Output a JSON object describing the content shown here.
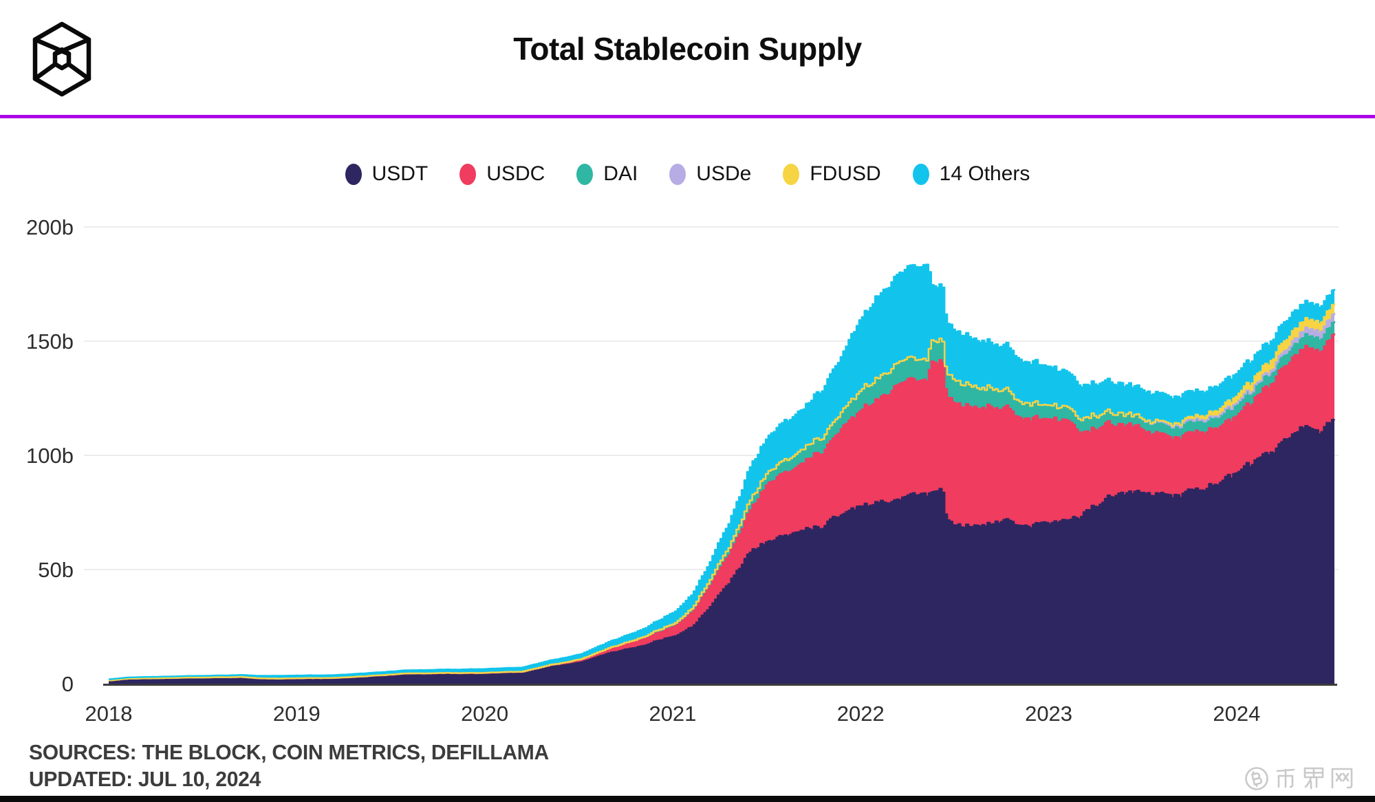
{
  "header": {
    "title": "Total Stablecoin Supply"
  },
  "footer": {
    "sources_line": "SOURCES: THE BLOCK, COIN METRICS, DEFILLAMA",
    "updated_line": "UPDATED: JUL 10, 2024"
  },
  "watermark": {
    "text": "币界网",
    "icon": "bitcoin-circle-icon"
  },
  "colors": {
    "background": "#ffffff",
    "rule_purple": "#ab07e6",
    "grid": "#ececec",
    "baseline": "#3c3c3c",
    "axis_text": "#2d2d2d",
    "title_text": "#0e0e0e",
    "footer_text": "#3c3c3c",
    "bottom_bar": "#0a0a0a",
    "watermark_gray": "#c9c9c9",
    "logo_black": "#0a0a0a"
  },
  "chart_data": {
    "type": "area",
    "stacked": true,
    "title": "Total Stablecoin Supply",
    "unit": "billions of USD",
    "grid": "horizontal",
    "legend_position": "top",
    "xlabel": "",
    "ylabel": "",
    "ylim": [
      0,
      200
    ],
    "x_range": [
      2018.0,
      2024.52
    ],
    "y_ticks": [
      {
        "value": 0,
        "label": "0"
      },
      {
        "value": 50,
        "label": "50b"
      },
      {
        "value": 100,
        "label": "100b"
      },
      {
        "value": 150,
        "label": "150b"
      },
      {
        "value": 200,
        "label": "200b"
      }
    ],
    "x_ticks": [
      {
        "value": 2018,
        "label": "2018"
      },
      {
        "value": 2019,
        "label": "2019"
      },
      {
        "value": 2020,
        "label": "2020"
      },
      {
        "value": 2021,
        "label": "2021"
      },
      {
        "value": 2022,
        "label": "2022"
      },
      {
        "value": 2023,
        "label": "2023"
      },
      {
        "value": 2024,
        "label": "2024"
      }
    ],
    "x": [
      2018.0,
      2018.1,
      2018.2,
      2018.3,
      2018.4,
      2018.5,
      2018.6,
      2018.7,
      2018.8,
      2018.9,
      2019.0,
      2019.2,
      2019.4,
      2019.6,
      2019.8,
      2020.0,
      2020.2,
      2020.35,
      2020.5,
      2020.65,
      2020.8,
      2020.9,
      2021.0,
      2021.1,
      2021.2,
      2021.3,
      2021.4,
      2021.5,
      2021.6,
      2021.7,
      2021.8,
      2021.9,
      2022.0,
      2022.1,
      2022.2,
      2022.3,
      2022.345,
      2022.355,
      2022.365,
      2022.43,
      2022.45,
      2022.5,
      2022.6,
      2022.7,
      2022.8,
      2022.86,
      2022.95,
      2023.0,
      2023.1,
      2023.17,
      2023.21,
      2023.3,
      2023.4,
      2023.5,
      2023.6,
      2023.7,
      2023.8,
      2023.9,
      2024.0,
      2024.1,
      2024.2,
      2024.3,
      2024.38,
      2024.45,
      2024.52
    ],
    "series": [
      {
        "name": "USDT",
        "color": "#2e2660",
        "values": [
          1.4,
          2.2,
          2.3,
          2.4,
          2.6,
          2.7,
          2.8,
          2.8,
          2.1,
          1.9,
          2.0,
          2.1,
          3.0,
          4.0,
          4.1,
          4.1,
          4.6,
          7.5,
          9.2,
          13.5,
          15.8,
          18.5,
          21.0,
          25.0,
          35.0,
          45.0,
          57.0,
          62.7,
          64.5,
          67.5,
          70.0,
          75.5,
          78.4,
          79.8,
          81.5,
          83.0,
          83.5,
          83.5,
          85.0,
          84.0,
          72.5,
          70.0,
          69.5,
          70.5,
          71.0,
          69.0,
          69.5,
          70.0,
          71.5,
          74.0,
          76.0,
          80.5,
          82.5,
          83.3,
          83.8,
          83.2,
          84.8,
          89.0,
          91.7,
          96.5,
          102.5,
          108.0,
          111.5,
          112.5,
          114.0
        ]
      },
      {
        "name": "USDC",
        "color": "#ef3c5f",
        "values": [
          0,
          0,
          0,
          0,
          0,
          0,
          0,
          0.05,
          0.15,
          0.25,
          0.3,
          0.35,
          0.4,
          0.45,
          0.5,
          0.52,
          0.65,
          0.75,
          1.1,
          1.7,
          2.6,
          3.3,
          4.2,
          6.5,
          9.5,
          12.5,
          18.0,
          25.0,
          27.5,
          30.0,
          33.0,
          37.5,
          42.5,
          46.5,
          50.5,
          50.0,
          49.5,
          49.5,
          56.0,
          56.5,
          54.0,
          53.5,
          52.5,
          51.0,
          49.0,
          47.0,
          45.5,
          45.0,
          43.5,
          37.0,
          34.5,
          32.5,
          29.5,
          27.8,
          26.0,
          25.3,
          24.8,
          24.3,
          25.2,
          27.5,
          31.0,
          33.5,
          34.5,
          35.5,
          37.5
        ]
      },
      {
        "name": "DAI",
        "color": "#2fb7a4",
        "values": [
          0.02,
          0.03,
          0.04,
          0.05,
          0.05,
          0.06,
          0.07,
          0.08,
          0.08,
          0.09,
          0.09,
          0.09,
          0.1,
          0.1,
          0.1,
          0.12,
          0.12,
          0.13,
          0.25,
          0.45,
          0.8,
          1.1,
          1.2,
          1.7,
          2.5,
          3.3,
          4.3,
          5.0,
          5.5,
          6.0,
          6.4,
          7.5,
          9.0,
          9.3,
          9.6,
          9.3,
          9.2,
          9.2,
          9.5,
          9.3,
          10.0,
          10.0,
          9.2,
          8.3,
          7.5,
          6.8,
          6.2,
          6.1,
          5.9,
          5.7,
          6.4,
          5.2,
          4.8,
          4.5,
          5.0,
          5.3,
          5.3,
          5.2,
          5.3,
          4.9,
          4.6,
          4.9,
          5.2,
          5.3,
          5.4
        ]
      },
      {
        "name": "USDe",
        "color": "#b7ade4",
        "values": [
          0,
          0,
          0,
          0,
          0,
          0,
          0,
          0,
          0,
          0,
          0,
          0,
          0,
          0,
          0,
          0,
          0,
          0,
          0,
          0,
          0,
          0,
          0,
          0,
          0,
          0,
          0,
          0,
          0,
          0,
          0,
          0,
          0,
          0,
          0,
          0,
          0,
          0,
          0,
          0,
          0,
          0,
          0,
          0,
          0,
          0,
          0,
          0,
          0,
          0,
          0,
          0,
          0,
          0,
          0,
          0,
          0,
          0.1,
          0.3,
          0.7,
          1.5,
          2.4,
          3.0,
          3.4,
          3.6
        ]
      },
      {
        "name": "FDUSD",
        "color": "#f6d443",
        "values": [
          0,
          0,
          0,
          0,
          0,
          0,
          0,
          0,
          0,
          0,
          0,
          0,
          0,
          0,
          0,
          0,
          0,
          0,
          0,
          0,
          0,
          0,
          0,
          0,
          0,
          0,
          0,
          0,
          0,
          0,
          0,
          0,
          0,
          0,
          0,
          0,
          0,
          0,
          0,
          0,
          0,
          0,
          0,
          0,
          0,
          0,
          0,
          0,
          0,
          0,
          0,
          0,
          0,
          0.2,
          0.5,
          1.1,
          1.7,
          2.4,
          3.1,
          3.8,
          4.4,
          4.4,
          4.0,
          4.1,
          4.3
        ]
      },
      {
        "name": "14 Others",
        "color": "#12c4ec",
        "values": [
          0.5,
          0.55,
          0.6,
          0.65,
          0.7,
          0.75,
          0.8,
          0.9,
          1.1,
          1.2,
          1.2,
          1.25,
          1.3,
          1.4,
          1.55,
          1.7,
          1.8,
          1.95,
          2.2,
          2.7,
          3.3,
          3.9,
          5.0,
          6.0,
          8.0,
          10.5,
          14.5,
          15.5,
          17.0,
          17.5,
          21.0,
          25.0,
          32.0,
          36.0,
          38.5,
          41.0,
          41.0,
          46.5,
          24.0,
          24.0,
          23.0,
          22.0,
          21.0,
          20.0,
          19.0,
          18.5,
          17.5,
          17.0,
          15.5,
          14.5,
          14.0,
          13.5,
          13.0,
          12.5,
          12.0,
          11.5,
          11.0,
          10.5,
          10.0,
          9.3,
          8.6,
          8.0,
          7.5,
          7.0,
          6.2
        ]
      }
    ]
  }
}
